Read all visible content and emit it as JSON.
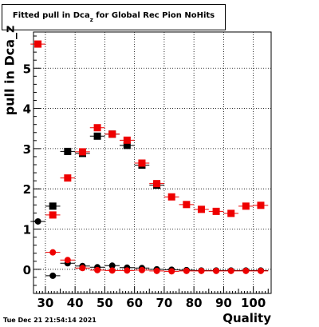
{
  "title": {
    "main": "Fitted pull in Dca",
    "sub": "z",
    "rest": " for Global Rec Pion NoHits"
  },
  "timestamp": "Tue Dec 21 21:54:14 2021",
  "chart_data": {
    "type": "scatter",
    "xlabel": "Quality",
    "ylabel": "pull in Dca_z",
    "xlim": [
      26,
      106
    ],
    "ylim": [
      -0.6,
      5.9
    ],
    "grid": true,
    "x_ticks": [
      30,
      40,
      50,
      60,
      70,
      80,
      90,
      100
    ],
    "y_ticks": [
      0,
      1,
      2,
      3,
      4,
      5
    ],
    "colors": {
      "black": "#000000",
      "red": "#ee0000"
    },
    "series": [
      {
        "marker": "circle",
        "color": "#000000",
        "points": [
          {
            "x": 27.5,
            "y": 1.19
          },
          {
            "x": 32.5,
            "y": -0.16
          },
          {
            "x": 37.5,
            "y": 0.15
          },
          {
            "x": 42.5,
            "y": 0.08
          },
          {
            "x": 47.5,
            "y": 0.05
          },
          {
            "x": 52.5,
            "y": 0.09
          },
          {
            "x": 57.5,
            "y": 0.04
          },
          {
            "x": 62.5,
            "y": 0.03
          },
          {
            "x": 67.5,
            "y": 0.0
          },
          {
            "x": 72.5,
            "y": -0.01
          },
          {
            "x": 77.5,
            "y": -0.02
          },
          {
            "x": 82.5,
            "y": -0.03
          },
          {
            "x": 87.5,
            "y": -0.03
          },
          {
            "x": 92.5,
            "y": -0.03
          },
          {
            "x": 97.5,
            "y": -0.03
          },
          {
            "x": 102.5,
            "y": -0.03
          }
        ]
      },
      {
        "marker": "circle",
        "color": "#ee0000",
        "points": [
          {
            "x": 32.5,
            "y": 0.42
          },
          {
            "x": 37.5,
            "y": 0.23
          },
          {
            "x": 42.5,
            "y": 0.03
          },
          {
            "x": 47.5,
            "y": -0.02
          },
          {
            "x": 52.5,
            "y": -0.03
          },
          {
            "x": 57.5,
            "y": -0.03
          },
          {
            "x": 62.5,
            "y": -0.02
          },
          {
            "x": 67.5,
            "y": -0.04
          },
          {
            "x": 72.5,
            "y": -0.05
          },
          {
            "x": 77.5,
            "y": -0.04
          },
          {
            "x": 82.5,
            "y": -0.04
          },
          {
            "x": 87.5,
            "y": -0.04
          },
          {
            "x": 92.5,
            "y": -0.04
          },
          {
            "x": 97.5,
            "y": -0.04
          },
          {
            "x": 102.5,
            "y": -0.04
          }
        ]
      },
      {
        "marker": "square",
        "color": "#000000",
        "points": [
          {
            "x": 32.5,
            "y": 1.57
          },
          {
            "x": 37.5,
            "y": 2.93
          },
          {
            "x": 42.5,
            "y": 2.88
          },
          {
            "x": 47.5,
            "y": 3.31
          },
          {
            "x": 52.5,
            "y": 3.36
          },
          {
            "x": 57.5,
            "y": 3.08
          },
          {
            "x": 62.5,
            "y": 2.59
          },
          {
            "x": 67.5,
            "y": 2.09
          }
        ]
      },
      {
        "marker": "square",
        "color": "#ee0000",
        "points": [
          {
            "x": 27.5,
            "y": 5.6
          },
          {
            "x": 32.5,
            "y": 1.35
          },
          {
            "x": 37.5,
            "y": 2.27
          },
          {
            "x": 42.5,
            "y": 2.92
          },
          {
            "x": 47.5,
            "y": 3.52
          },
          {
            "x": 52.5,
            "y": 3.36
          },
          {
            "x": 57.5,
            "y": 3.21
          },
          {
            "x": 62.5,
            "y": 2.64
          },
          {
            "x": 67.5,
            "y": 2.13
          },
          {
            "x": 72.5,
            "y": 1.8
          },
          {
            "x": 77.5,
            "y": 1.61
          },
          {
            "x": 82.5,
            "y": 1.49
          },
          {
            "x": 87.5,
            "y": 1.44
          },
          {
            "x": 92.5,
            "y": 1.39
          },
          {
            "x": 97.5,
            "y": 1.57
          },
          {
            "x": 102.5,
            "y": 1.59
          }
        ]
      }
    ]
  }
}
